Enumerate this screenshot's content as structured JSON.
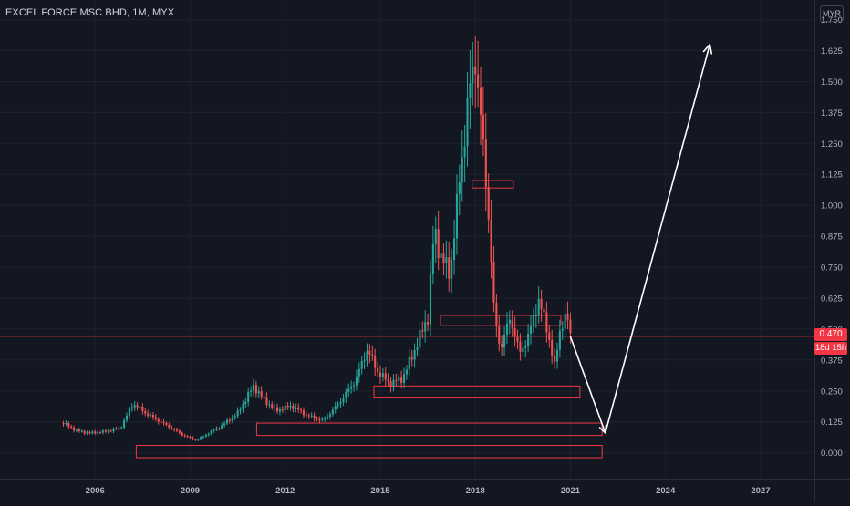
{
  "header": {
    "title": "EXCEL FORCE MSC BHD, 1M, MYX",
    "currency": "MYR"
  },
  "price_tag": {
    "last_price": "0.470",
    "countdown": "18d 15h",
    "color": "#f23645"
  },
  "colors": {
    "background": "#131722",
    "up": "#26a69a",
    "down": "#ef5350",
    "zone": "#f23645",
    "arrow": "#ffffff"
  },
  "chart_data": {
    "type": "candlestick",
    "title": "EXCEL FORCE MSC BHD, 1M, MYX",
    "ylabel": "MYR",
    "xlim": [
      2003.0,
      2028.7
    ],
    "ylim": [
      -0.075,
      1.8
    ],
    "y_ticks": [
      "1.750",
      "1.625",
      "1.500",
      "1.375",
      "1.250",
      "1.125",
      "1.000",
      "0.875",
      "0.750",
      "0.625",
      "0.500",
      "0.375",
      "0.250",
      "0.125",
      "0.000"
    ],
    "x_ticks": [
      "2006",
      "2009",
      "2012",
      "2015",
      "2018",
      "2021",
      "2024",
      "2027"
    ],
    "grid": true,
    "last_price": 0.47,
    "price_series": [
      {
        "x": 2005.0,
        "y": 0.12
      },
      {
        "x": 2005.4,
        "y": 0.09
      },
      {
        "x": 2005.8,
        "y": 0.08
      },
      {
        "x": 2006.3,
        "y": 0.085
      },
      {
        "x": 2006.8,
        "y": 0.1
      },
      {
        "x": 2007.2,
        "y": 0.2
      },
      {
        "x": 2007.6,
        "y": 0.16
      },
      {
        "x": 2008.0,
        "y": 0.13
      },
      {
        "x": 2008.4,
        "y": 0.1
      },
      {
        "x": 2008.8,
        "y": 0.07
      },
      {
        "x": 2009.2,
        "y": 0.05
      },
      {
        "x": 2009.6,
        "y": 0.08
      },
      {
        "x": 2010.0,
        "y": 0.11
      },
      {
        "x": 2010.5,
        "y": 0.16
      },
      {
        "x": 2011.0,
        "y": 0.27
      },
      {
        "x": 2011.3,
        "y": 0.22
      },
      {
        "x": 2011.7,
        "y": 0.17
      },
      {
        "x": 2012.2,
        "y": 0.19
      },
      {
        "x": 2012.7,
        "y": 0.15
      },
      {
        "x": 2013.2,
        "y": 0.13
      },
      {
        "x": 2013.7,
        "y": 0.2
      },
      {
        "x": 2014.2,
        "y": 0.29
      },
      {
        "x": 2014.6,
        "y": 0.42
      },
      {
        "x": 2014.9,
        "y": 0.33
      },
      {
        "x": 2015.3,
        "y": 0.28
      },
      {
        "x": 2015.7,
        "y": 0.3
      },
      {
        "x": 2016.1,
        "y": 0.42
      },
      {
        "x": 2016.5,
        "y": 0.55
      },
      {
        "x": 2016.7,
        "y": 0.9
      },
      {
        "x": 2016.9,
        "y": 0.8
      },
      {
        "x": 2017.2,
        "y": 0.72
      },
      {
        "x": 2017.5,
        "y": 1.1
      },
      {
        "x": 2017.8,
        "y": 1.45
      },
      {
        "x": 2018.0,
        "y": 1.6
      },
      {
        "x": 2018.2,
        "y": 1.3
      },
      {
        "x": 2018.4,
        "y": 1.0
      },
      {
        "x": 2018.6,
        "y": 0.55
      },
      {
        "x": 2018.8,
        "y": 0.42
      },
      {
        "x": 2019.1,
        "y": 0.55
      },
      {
        "x": 2019.4,
        "y": 0.4
      },
      {
        "x": 2019.7,
        "y": 0.48
      },
      {
        "x": 2020.0,
        "y": 0.62
      },
      {
        "x": 2020.3,
        "y": 0.48
      },
      {
        "x": 2020.5,
        "y": 0.35
      },
      {
        "x": 2020.7,
        "y": 0.52
      },
      {
        "x": 2020.9,
        "y": 0.55
      },
      {
        "x": 2021.0,
        "y": 0.47
      }
    ],
    "zones": [
      {
        "x0": 2017.9,
        "x1": 2019.2,
        "y0": 1.07,
        "y1": 1.1
      },
      {
        "x0": 2016.9,
        "x1": 2020.7,
        "y0": 0.515,
        "y1": 0.555
      },
      {
        "x0": 2014.8,
        "x1": 2021.3,
        "y0": 0.225,
        "y1": 0.27
      },
      {
        "x0": 2011.1,
        "x1": 2022.0,
        "y0": 0.07,
        "y1": 0.12
      },
      {
        "x0": 2007.3,
        "x1": 2022.0,
        "y0": -0.02,
        "y1": 0.03
      }
    ],
    "projection": [
      {
        "x": 2021.0,
        "y": 0.47
      },
      {
        "x": 2022.1,
        "y": 0.08
      },
      {
        "x": 2025.4,
        "y": 1.65
      }
    ]
  }
}
